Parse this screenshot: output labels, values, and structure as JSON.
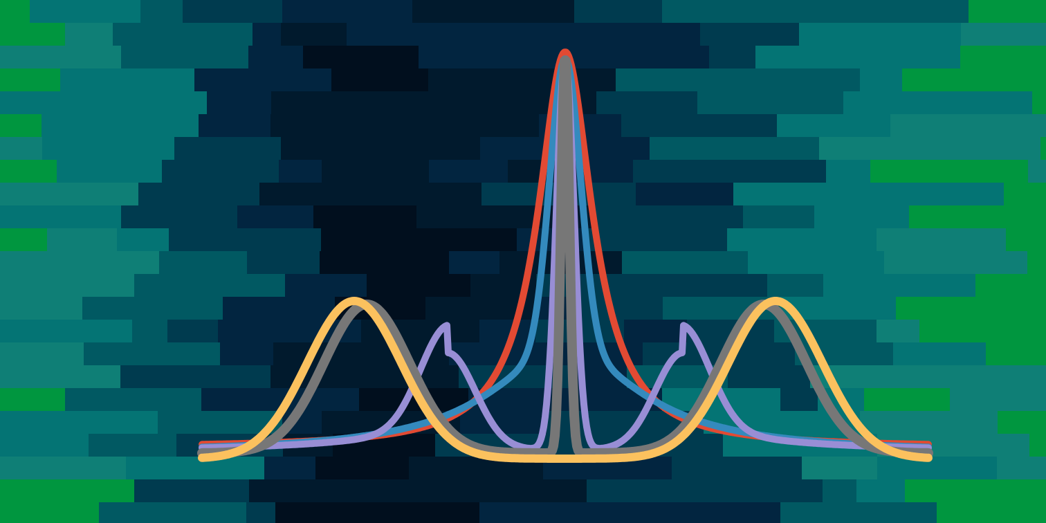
{
  "palette": {
    "background_colors": [
      "#00963F",
      "#0F7F76",
      "#047474",
      "#015962",
      "#003B4F",
      "#022540",
      "#011A2D",
      "#010F1E"
    ],
    "curve_colors": {
      "red": "#E24A33",
      "blue": "#348ABD",
      "purple": "#988ED5",
      "gray": "#777777",
      "yellow": "#FBC15E"
    }
  },
  "illustration": {
    "motif": "overlapping-peak-curves-on-pixel-gradient"
  }
}
